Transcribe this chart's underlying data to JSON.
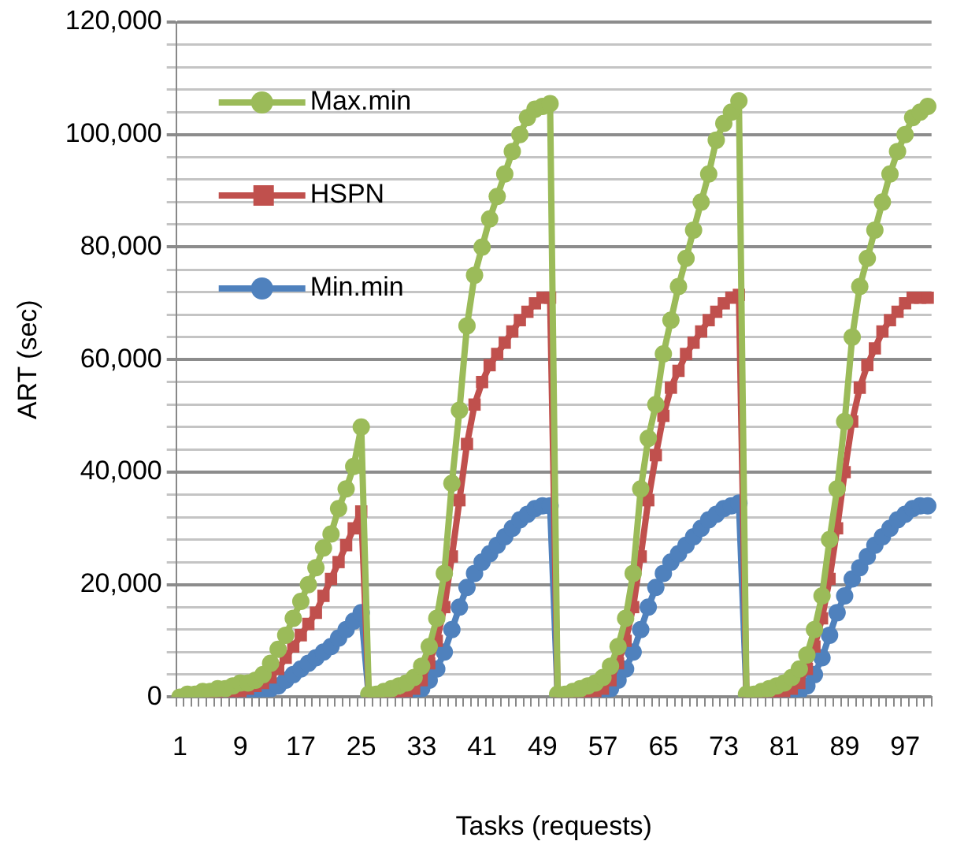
{
  "chart_data": {
    "type": "line",
    "xlabel": "Tasks (requests)",
    "ylabel": "ART (sec)",
    "categories": [
      "1",
      null,
      null,
      null,
      null,
      null,
      null,
      null,
      "9",
      null,
      null,
      null,
      null,
      null,
      null,
      null,
      "17",
      null,
      null,
      null,
      null,
      null,
      null,
      null,
      "25",
      null,
      null,
      null,
      null,
      null,
      null,
      null,
      "33",
      null,
      null,
      null,
      null,
      null,
      null,
      null,
      "41",
      null,
      null,
      null,
      null,
      null,
      null,
      null,
      "49",
      null,
      null,
      null,
      null,
      null,
      null,
      null,
      "57",
      null,
      null,
      null,
      null,
      null,
      null,
      null,
      "65",
      null,
      null,
      null,
      null,
      null,
      null,
      null,
      "73",
      null,
      null,
      null,
      null,
      null,
      null,
      null,
      "81",
      null,
      null,
      null,
      null,
      null,
      null,
      null,
      "89",
      null,
      null,
      null,
      null,
      null,
      null,
      null,
      "97",
      null,
      null,
      null
    ],
    "series": [
      {
        "name": "Max.min",
        "color": "#9bbb59",
        "marker": "circle",
        "values": [
          0,
          500,
          500,
          1000,
          1000,
          1500,
          1500,
          2000,
          2500,
          2500,
          3000,
          4000,
          6000,
          8500,
          11000,
          14000,
          17000,
          20000,
          23000,
          26500,
          29000,
          33500,
          37000,
          41000,
          48000,
          500,
          500,
          1000,
          1500,
          2000,
          2500,
          3500,
          5500,
          9000,
          14000,
          22000,
          38000,
          51000,
          66000,
          75000,
          80000,
          85000,
          89000,
          93000,
          97000,
          100000,
          103000,
          104500,
          105000,
          105500,
          500,
          500,
          1000,
          1500,
          2000,
          2500,
          3500,
          5500,
          9000,
          14000,
          22000,
          37000,
          46000,
          52000,
          61000,
          67000,
          73000,
          78000,
          83000,
          88000,
          93000,
          99000,
          102000,
          104000,
          106000,
          500,
          500,
          1000,
          1500,
          2000,
          2500,
          3500,
          5000,
          7500,
          12000,
          18000,
          28000,
          37000,
          49000,
          64000,
          73000,
          78000,
          83000,
          88000,
          93000,
          97000,
          100000,
          103000,
          104000,
          105000
        ]
      },
      {
        "name": "HSPN",
        "color": "#c0504d",
        "marker": "square",
        "values": [
          null,
          null,
          null,
          null,
          500,
          500,
          1000,
          1000,
          1000,
          1500,
          2000,
          2500,
          3500,
          5000,
          7000,
          9000,
          11000,
          13000,
          15000,
          18000,
          21000,
          24000,
          27000,
          30000,
          33000,
          0,
          0,
          500,
          500,
          500,
          1000,
          1500,
          3000,
          6000,
          10000,
          16000,
          25000,
          35000,
          45000,
          52000,
          56000,
          59000,
          61000,
          63000,
          65000,
          67000,
          68500,
          70000,
          71000,
          71000,
          0,
          0,
          500,
          500,
          500,
          1000,
          1500,
          3000,
          6000,
          10000,
          16000,
          25000,
          35000,
          43000,
          50000,
          55000,
          58000,
          61000,
          63000,
          65000,
          67000,
          68500,
          70000,
          71000,
          71500,
          0,
          0,
          500,
          500,
          500,
          1000,
          1500,
          2500,
          5000,
          9000,
          14000,
          21000,
          30000,
          40000,
          49000,
          55000,
          59000,
          62000,
          65000,
          67000,
          68500,
          70000,
          71000,
          71000,
          71000
        ]
      },
      {
        "name": "Min.min",
        "color": "#4f81bd",
        "marker": "circle",
        "values": [
          null,
          null,
          null,
          null,
          null,
          null,
          500,
          500,
          500,
          500,
          1000,
          1000,
          1500,
          2000,
          3000,
          4000,
          5000,
          6000,
          7000,
          8000,
          9000,
          10500,
          12000,
          13500,
          15000,
          0,
          0,
          0,
          0,
          0,
          500,
          500,
          1500,
          3000,
          5000,
          8000,
          12000,
          16000,
          19500,
          22000,
          24000,
          25500,
          27000,
          28500,
          30000,
          31500,
          32500,
          33500,
          34000,
          34000,
          0,
          0,
          0,
          0,
          0,
          500,
          500,
          1500,
          3000,
          5000,
          8000,
          12000,
          16000,
          19500,
          22000,
          24000,
          25500,
          27000,
          28500,
          30000,
          31500,
          32500,
          33500,
          34000,
          34500,
          0,
          0,
          0,
          0,
          0,
          500,
          500,
          1000,
          2000,
          4000,
          7000,
          11000,
          15000,
          18000,
          21000,
          23000,
          25000,
          27000,
          28500,
          30000,
          31500,
          32500,
          33500,
          34000,
          34000
        ]
      }
    ],
    "ylim": [
      0,
      120000
    ],
    "yticks": [
      0,
      {
        "value": 4000,
        "label": null
      },
      {
        "value": 8000,
        "label": null
      },
      {
        "value": 12000,
        "label": null
      },
      {
        "value": 16000,
        "label": null
      },
      "20,000",
      {
        "value": 24000,
        "label": null
      },
      {
        "value": 28000,
        "label": null
      },
      {
        "value": 32000,
        "label": null
      },
      {
        "value": 36000,
        "label": null
      },
      {
        "value": 40000,
        "label": "40,000"
      },
      {
        "value": 44000,
        "label": null
      },
      {
        "value": 48000,
        "label": null
      },
      {
        "value": 52000,
        "label": null
      },
      {
        "value": 56000,
        "label": null
      },
      {
        "value": 60000,
        "label": "60,000"
      },
      {
        "value": 64000,
        "label": null
      },
      {
        "value": 68000,
        "label": null
      },
      {
        "value": 72000,
        "label": null
      },
      {
        "value": 76000,
        "label": null
      },
      {
        "value": 80000,
        "label": "80,000"
      },
      {
        "value": 84000,
        "label": null
      },
      {
        "value": 88000,
        "label": null
      },
      {
        "value": 92000,
        "label": null
      },
      {
        "value": 96000,
        "label": null
      },
      {
        "value": 100000,
        "label": "100,000"
      },
      {
        "value": 104000,
        "label": null
      },
      {
        "value": 108000,
        "label": null
      },
      {
        "value": 112000,
        "label": null
      },
      {
        "value": 116000,
        "label": null
      },
      {
        "value": 120000,
        "label": "120,000"
      }
    ],
    "grid": "y",
    "legend": "top left"
  }
}
